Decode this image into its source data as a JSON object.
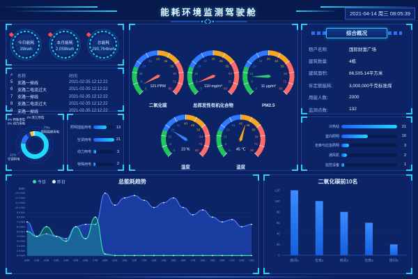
{
  "header": {
    "title": "能耗环境监测驾驶舱",
    "datetime": "2021-04-14 周三 08:05:39"
  },
  "stats": {
    "cards": [
      {
        "label": "今日能耗",
        "value": "39kwh"
      },
      {
        "label": "本月能耗",
        "value": "2,059kwh"
      },
      {
        "label": "总能耗",
        "value": "290,764kwh"
      }
    ]
  },
  "alarms": {
    "columns": {
      "index": "#",
      "name": "名称",
      "time": "时间"
    },
    "rows": [
      {
        "index": "5",
        "name": "支路一掉线",
        "time": "2021-02-35 12:12:22"
      },
      {
        "index": "6",
        "name": "支路二电流过大",
        "time": "2021-02-35 12:12:22"
      },
      {
        "index": "7",
        "name": "支路一掉线",
        "time": "2021-02-35 12:12:22"
      },
      {
        "index": "8",
        "name": "支路二电流过大",
        "time": "2021-02-35 12:12:22"
      },
      {
        "index": "9",
        "name": "支路一掉线",
        "time": "2021-02-35 12:12:22"
      }
    ]
  },
  "gauges": {
    "scale": {
      "min": 0,
      "max": 80,
      "step": 8
    },
    "items": [
      {
        "name": "二氧化碳",
        "value": "121 PPM",
        "needle": 5,
        "needle_color": "#ff6f61"
      },
      {
        "name": "总挥发性有机化合物",
        "value": "110 mg/m³",
        "needle": 7,
        "needle_color": "#ff6f61"
      },
      {
        "name": "PM2.5",
        "value": "11 μg/m³",
        "needle": 13,
        "needle_color": "#2ecc71"
      },
      {
        "name": "湿度",
        "value": "23 %",
        "needle": 23,
        "needle_color": "#3b82f6"
      },
      {
        "name": "温度",
        "value": "45 ℃",
        "needle": 45,
        "needle_color": "#f5a623"
      }
    ]
  },
  "overview": {
    "title": "综合概况",
    "rows": [
      {
        "label": "租户名称:",
        "value": "国际财富广场"
      },
      {
        "label": "建筑数量:",
        "value": "4栋"
      },
      {
        "label": "建筑面积:",
        "value": "66,505.14平方米"
      },
      {
        "label": "年定额能耗:",
        "value": "3,000,000千克标准煤"
      },
      {
        "label": "用能人数:",
        "value": "2000"
      },
      {
        "label": "监测点数:",
        "value": "132"
      }
    ]
  },
  "chart_data": [
    {
      "id": "subitem_pie",
      "type": "pie",
      "labels": [
        "照明插座用电",
        "空调用电",
        "动力用电",
        "特殊用电",
        "其它用电"
      ],
      "values": [
        77,
        12,
        5,
        4,
        2
      ],
      "unit": "%",
      "colors": [
        "#1fd9ff",
        "#2f6ff2",
        "#12399b",
        "#f6c344",
        "#cfe8ff"
      ]
    },
    {
      "id": "subitem_bars",
      "type": "bar",
      "orientation": "horizontal",
      "categories": [
        "照明插座用电",
        "空调用电",
        "动力用电",
        "特殊用电"
      ],
      "values": [
        13,
        21,
        3,
        2
      ]
    },
    {
      "id": "device_bars",
      "type": "bar",
      "orientation": "horizontal",
      "categories": [
        "冷热站",
        "室内照明",
        "走廊与应急照明",
        "通风机",
        "监控设备"
      ],
      "values": [
        21,
        10,
        3,
        2,
        1
      ]
    },
    {
      "id": "energy_trend",
      "type": "area",
      "title": "总能耗趋势",
      "ylabel": "kWh",
      "ylim": [
        0,
        13
      ],
      "grid": true,
      "legend_position": "top-left",
      "x": [
        "00时",
        "01时",
        "02时",
        "03时",
        "04时",
        "05时",
        "06时",
        "07时",
        "08时",
        "09时",
        "10时",
        "11时",
        "12时",
        "13时",
        "14时",
        "15时",
        "16时",
        "17时",
        "18时",
        "19时",
        "20时",
        "21时",
        "22时",
        "23时"
      ],
      "series": [
        {
          "name": "今日",
          "color": "#2ee6a6",
          "dot": "#2ee6a6",
          "values": [
            5,
            4,
            6,
            4,
            3,
            6,
            3.5,
            8,
            0.3,
            0,
            0,
            0,
            0,
            0,
            0,
            0,
            0,
            0,
            0,
            0,
            0,
            0,
            0,
            0
          ]
        },
        {
          "name": "昨日",
          "color": "#4f7bff",
          "dot": "#eaf2ff",
          "values": [
            7,
            4,
            4.5,
            4,
            3.5,
            6,
            6.5,
            6.5,
            13,
            10.5,
            12,
            12.5,
            11.5,
            10,
            11,
            12,
            10,
            8.5,
            9.5,
            8,
            7,
            7.5,
            6,
            6.5
          ]
        }
      ]
    },
    {
      "id": "co2_top10",
      "type": "bar",
      "orientation": "vertical",
      "title": "二氧化碳前10名",
      "ylim": [
        0,
        120
      ],
      "ytick_step": 20,
      "grid": true,
      "categories": [
        "房间1",
        "仓库1",
        "房间2",
        "仓库2",
        "房间3"
      ],
      "values": [
        120,
        100,
        80,
        60,
        20
      ],
      "bar_color": "#1d6ff2"
    }
  ],
  "colors": {
    "accent_cyan": "#2ad0ff",
    "panel_border": "#1d3f97",
    "alert_red": "#ff4d4f",
    "bar_gradient_start": "#1e62ff",
    "bar_gradient_end": "#19d8ff"
  }
}
